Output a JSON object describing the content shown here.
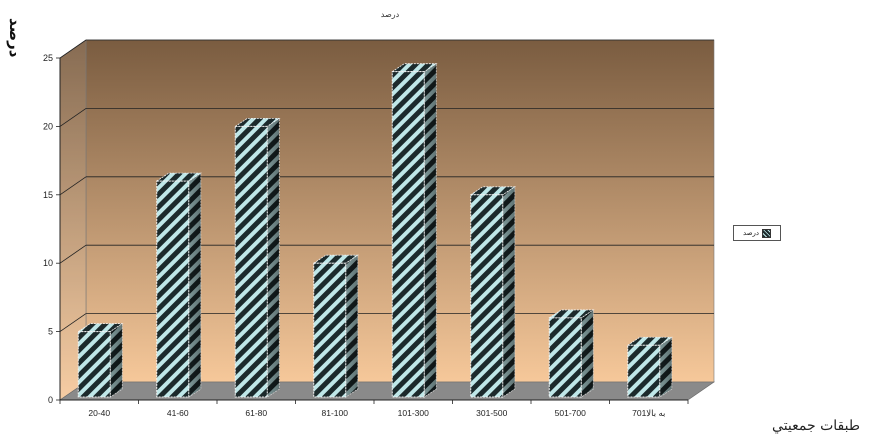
{
  "chart_data": {
    "type": "bar",
    "title": "درصد",
    "ylabel": "درصد",
    "xlabel": "طبقات جمعيتي",
    "categories": [
      "20-40",
      "41-60",
      "61-80",
      "81-100",
      "101-300",
      "301-500",
      "501-700",
      "701به بالا"
    ],
    "series": [
      {
        "name": "درصد",
        "values": [
          5,
          16,
          20,
          10,
          24,
          15,
          6,
          4
        ]
      }
    ],
    "ylim": [
      0,
      25
    ],
    "yticks": [
      0,
      5,
      10,
      15,
      20,
      25
    ],
    "grid": true,
    "legend": "right"
  },
  "colors": {
    "wall_top": "#7a5c40",
    "wall_bottom": "#f6c89a",
    "floor": "#8a8a8a",
    "bar_dark": "#1c2a2c",
    "bar_light": "#bfe7e8"
  }
}
